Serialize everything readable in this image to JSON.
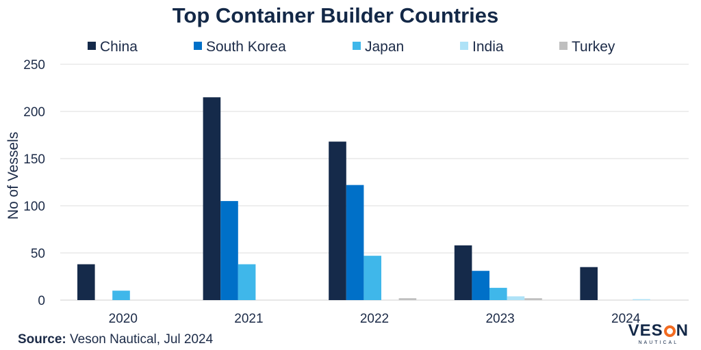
{
  "chart_data": {
    "type": "bar",
    "title": "Top Container Builder Countries",
    "xlabel": "",
    "ylabel": "No of Vessels",
    "ylim": [
      0,
      250
    ],
    "yticks": [
      0,
      50,
      100,
      150,
      200,
      250
    ],
    "grid": true,
    "legend_position": "top",
    "categories": [
      "2020",
      "2021",
      "2022",
      "2023",
      "2024"
    ],
    "series": [
      {
        "name": "China",
        "color": "#152a4a",
        "values": [
          38,
          215,
          168,
          58,
          35
        ]
      },
      {
        "name": "South Korea",
        "color": "#0070c8",
        "values": [
          0,
          105,
          122,
          31,
          0
        ]
      },
      {
        "name": "Japan",
        "color": "#3fb7ea",
        "values": [
          10,
          38,
          47,
          13,
          0
        ]
      },
      {
        "name": "India",
        "color": "#aee2f7",
        "values": [
          0,
          0,
          0,
          4,
          1
        ]
      },
      {
        "name": "Turkey",
        "color": "#bfbfbf",
        "values": [
          0,
          0,
          2,
          2,
          0
        ]
      }
    ]
  },
  "source": {
    "label": "Source:",
    "text": "Veson Nautical, Jul 2024"
  },
  "logo": {
    "main_left": "VES",
    "main_right": "N",
    "sub": "NAUTICAL"
  }
}
